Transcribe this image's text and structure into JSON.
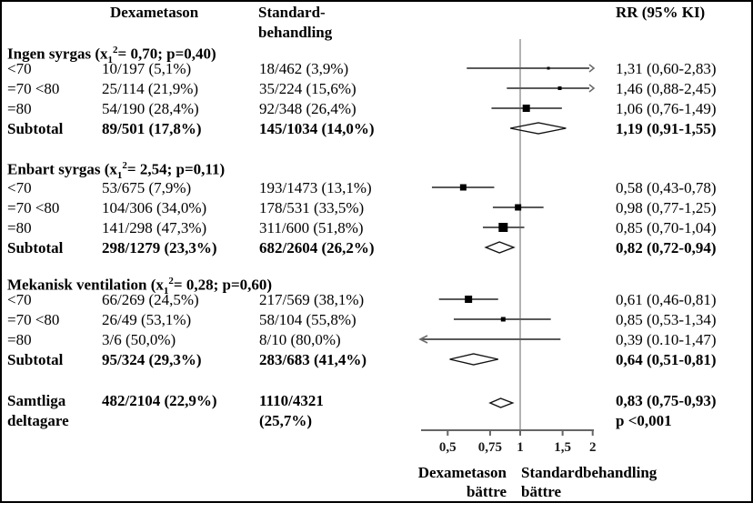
{
  "figure": {
    "columns": {
      "dexa": "Dexametason",
      "standard_line1": "Standard-",
      "standard_line2": "behandling",
      "rr": "RR (95% KI)"
    },
    "groups": [
      {
        "header": {
          "pre": "Ingen syrgas (x",
          "sub": "1",
          "sup": "2",
          "post": "= 0,70; p=0,40)"
        },
        "rows": [
          {
            "label": "<70",
            "dexa": "10/197 (5,1%)",
            "standard": "18/462 (3,9%)",
            "rr": "1,31 (0,60-2,83)"
          },
          {
            "label": "=70 <80",
            "dexa": "25/114 (21,9%)",
            "standard": "35/224 (15,6%)",
            "rr": "1,46 (0,88-2,45)"
          },
          {
            "label": "=80",
            "dexa": "54/190 (28,4%)",
            "standard": "92/348 (26,4%)",
            "rr": "1,06 (0,76-1,49)"
          }
        ],
        "subtotal": {
          "label": "Subtotal",
          "dexa": "89/501 (17,8%)",
          "standard": "145/1034 (14,0%)",
          "rr": "1,19 (0,91-1,55)"
        }
      },
      {
        "header": {
          "pre": "Enbart syrgas (x",
          "sub": "1",
          "sup": "2",
          "post": "= 2,54; p=0,11)"
        },
        "rows": [
          {
            "label": "<70",
            "dexa": "53/675 (7,9%)",
            "standard": "193/1473 (13,1%)",
            "rr": "0,58 (0,43-0,78)"
          },
          {
            "label": "=70 <80",
            "dexa": "104/306 (34,0%)",
            "standard": "178/531 (33,5%)",
            "rr": "0,98 (0,77-1,25)"
          },
          {
            "label": "=80",
            "dexa": "141/298 (47,3%)",
            "standard": "311/600 (51,8%)",
            "rr": "0,85 (0,70-1,04)"
          }
        ],
        "subtotal": {
          "label": "Subtotal",
          "dexa": "298/1279 (23,3%)",
          "standard": "682/2604 (26,2%)",
          "rr": "0,82 (0,72-0,94)"
        }
      },
      {
        "header": {
          "pre": "Mekanisk ventilation (x",
          "sub": "1",
          "sup": "2",
          "post": "= 0,28; p=0,60)"
        },
        "rows": [
          {
            "label": "<70",
            "dexa": "66/269 (24,5%)",
            "standard": "217/569 (38,1%)",
            "rr": "0,61 (0,46-0,81)"
          },
          {
            "label": "=70 <80",
            "dexa": "26/49 (53,1%)",
            "standard": "58/104 (55,8%)",
            "rr": "0,85 (0,53-1,34)"
          },
          {
            "label": "=80",
            "dexa": "3/6 (50,0%)",
            "standard": "8/10 (80,0%)",
            "rr": "0,39 (0.10-1,47)"
          }
        ],
        "subtotal": {
          "label": "Subtotal",
          "dexa": "95/324 (29,3%)",
          "standard": "283/683 (41,4%)",
          "rr": "0,64 (0,51-0,81)"
        }
      }
    ],
    "overall": {
      "label_line1": "Samtliga",
      "label_line2": "deltagare",
      "dexa": "482/2104 (22,9%)",
      "standard_line1": "1110/4321",
      "standard_line2": "(25,7%)",
      "rr": "0,83 (0,75-0,93)",
      "p": "p <0,001"
    },
    "axis_labels": {
      "left_line1": "Dexametason",
      "left_line2": "bättre",
      "right_line1": "Standardbehandling",
      "right_line2": "bättre"
    }
  },
  "chart_data": {
    "type": "forest",
    "x_scale": "log",
    "ref_line": 1,
    "x_range": [
      0.39,
      2.02
    ],
    "axis_ticks": {
      "values": [
        0.5,
        0.75,
        1,
        1.5,
        2
      ],
      "labels": [
        "0,5",
        "0,75",
        "1",
        "1,5",
        "2"
      ]
    },
    "groups": [
      {
        "name": "Ingen syrgas",
        "chi2": "0,70",
        "p": "0,40",
        "rows": [
          {
            "label": "<70",
            "rr": 1.31,
            "lo": 0.6,
            "hi": 2.83,
            "marker": 3
          },
          {
            "label": "=70 <80",
            "rr": 1.46,
            "lo": 0.88,
            "hi": 2.45,
            "marker": 4
          },
          {
            "label": "=80",
            "rr": 1.06,
            "lo": 0.76,
            "hi": 1.49,
            "marker": 8
          }
        ],
        "subtotal": {
          "rr": 1.19,
          "lo": 0.91,
          "hi": 1.55
        }
      },
      {
        "name": "Enbart syrgas",
        "chi2": "2,54",
        "p": "0,11",
        "rows": [
          {
            "label": "<70",
            "rr": 0.58,
            "lo": 0.43,
            "hi": 0.78,
            "marker": 7
          },
          {
            "label": "=70 <80",
            "rr": 0.98,
            "lo": 0.77,
            "hi": 1.25,
            "marker": 7
          },
          {
            "label": "=80",
            "rr": 0.85,
            "lo": 0.7,
            "hi": 1.04,
            "marker": 10
          }
        ],
        "subtotal": {
          "rr": 0.82,
          "lo": 0.72,
          "hi": 0.94
        }
      },
      {
        "name": "Mekanisk ventilation",
        "chi2": "0,28",
        "p": "0,60",
        "rows": [
          {
            "label": "<70",
            "rr": 0.61,
            "lo": 0.46,
            "hi": 0.81,
            "marker": 8
          },
          {
            "label": "=70 <80",
            "rr": 0.85,
            "lo": 0.53,
            "hi": 1.34,
            "marker": 5
          },
          {
            "label": "=80",
            "rr": 0.39,
            "lo": 0.1,
            "hi": 1.47,
            "marker": 0
          }
        ],
        "subtotal": {
          "rr": 0.64,
          "lo": 0.51,
          "hi": 0.81
        }
      }
    ],
    "overall": {
      "rr": 0.83,
      "lo": 0.75,
      "hi": 0.93,
      "p_text": "p <0,001"
    }
  },
  "colors": {
    "text": "#000000",
    "ci_line": "#5a5a5a",
    "arrow": "#6b6b6b",
    "axis": "#666666",
    "ref_line": "#888888",
    "marker": "#000000",
    "diamond_outline": "#111111"
  }
}
